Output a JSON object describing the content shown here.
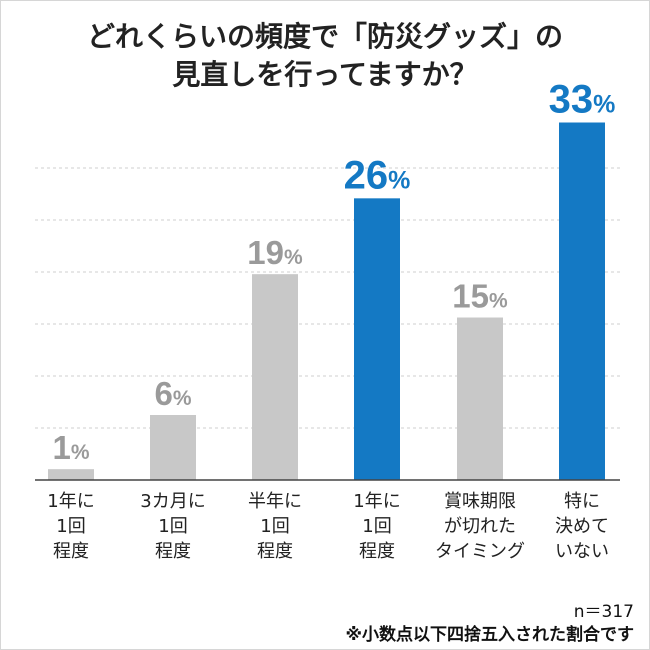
{
  "title_lines": [
    "どれくらいの頻度で「防災グッズ」の",
    "見直しを行ってますか？"
  ],
  "footnotes": {
    "sample": "n＝317",
    "rounding": "※小数点以下四捨五入された割合です"
  },
  "colors": {
    "highlight": "#1479c4",
    "normal": "#c8c8c8",
    "highlight_label": "#1479c4",
    "normal_label": "#9a9a9a"
  },
  "chart_data": {
    "type": "bar",
    "categories": [
      [
        "1年に",
        "1回",
        "程度"
      ],
      [
        "3カ月に",
        "1回",
        "程度"
      ],
      [
        "半年に",
        "1回",
        "程度"
      ],
      [
        "1年に",
        "1回",
        "程度"
      ],
      [
        "賞味期限",
        "が切れた",
        "タイミング"
      ],
      [
        "特に",
        "決めて",
        "いない"
      ]
    ],
    "values": [
      1,
      6,
      19,
      26,
      15,
      33
    ],
    "highlighted": [
      false,
      false,
      false,
      true,
      false,
      true
    ],
    "value_suffix": "%",
    "ylim": [
      0,
      36
    ],
    "grid": true
  }
}
